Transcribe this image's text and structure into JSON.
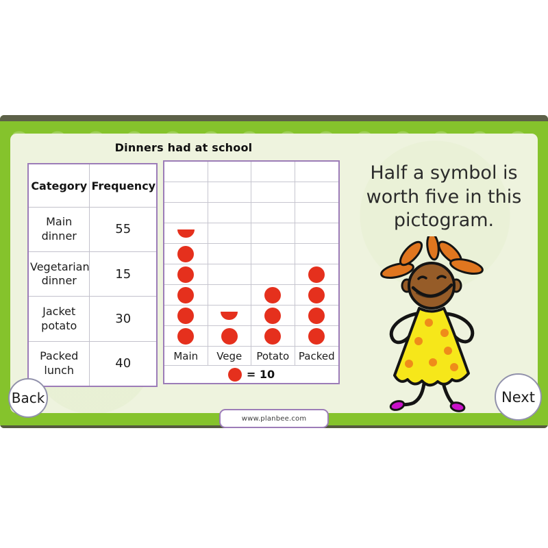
{
  "slide": {
    "title": "Dinners had at school",
    "caption": "Half a symbol is worth five in this pictogram.",
    "footer_url": "www.planbee.com",
    "nav": {
      "back_label": "Back",
      "next_label": "Next"
    }
  },
  "table": {
    "headers": [
      "Category",
      "Frequency"
    ],
    "rows": [
      {
        "category": "Main dinner",
        "frequency": "55"
      },
      {
        "category": "Vegetarian dinner",
        "frequency": "15"
      },
      {
        "category": "Jacket potato",
        "frequency": "30"
      },
      {
        "category": "Packed lunch",
        "frequency": "40"
      }
    ]
  },
  "chart_data": {
    "type": "bar",
    "variant": "pictogram",
    "title": "Dinners had at school",
    "categories": [
      "Main",
      "Vege",
      "Potato",
      "Packed"
    ],
    "values": [
      55,
      15,
      30,
      40
    ],
    "symbol": "red-circle",
    "symbol_value": 10,
    "half_symbol_value": 5,
    "key_label": "= 10",
    "grid_rows": 9,
    "grid": true,
    "legend_position": "bottom"
  },
  "colors": {
    "frame_green": "#85c32c",
    "frame_strip": "#5d6148",
    "content_bg": "#eef3de",
    "border_purple": "#9c7cb8",
    "symbol_red": "#e5301d",
    "button_border": "#9191ab"
  }
}
